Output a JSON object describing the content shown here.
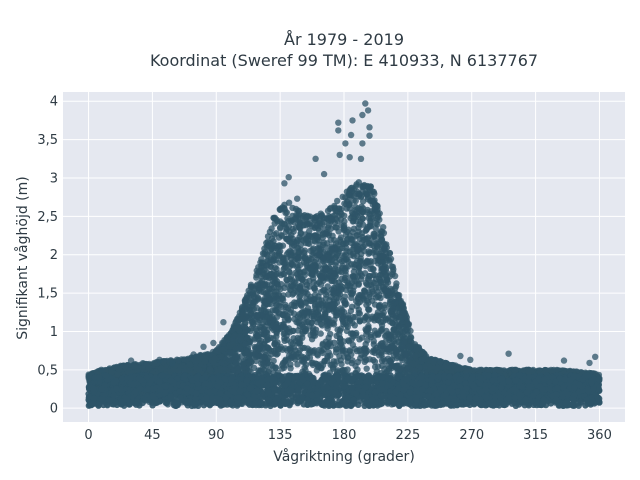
{
  "chart_data": {
    "type": "scatter",
    "title_line1": "År 1979 - 2019",
    "title_line2": "Koordinat (Sweref 99 TM): E 410933, N 6137767",
    "xlabel": "Vågriktning (grader)",
    "ylabel": "Signifikant våghöjd (m)",
    "xlim": [
      -18,
      378
    ],
    "ylim": [
      -0.18,
      4.12
    ],
    "xticks": [
      0,
      45,
      90,
      135,
      180,
      225,
      270,
      315,
      360
    ],
    "xtick_labels": [
      "0",
      "45",
      "90",
      "135",
      "180",
      "225",
      "270",
      "315",
      "360"
    ],
    "yticks": [
      0,
      0.5,
      1,
      1.5,
      2,
      2.5,
      3,
      3.5,
      4
    ],
    "ytick_labels": [
      "0",
      "0,5",
      "1",
      "1,5",
      "2",
      "2,5",
      "3",
      "3,5",
      "4"
    ],
    "grid": true,
    "colors": {
      "background": "#e5e8f0",
      "grid": "#ffffff",
      "points": "#2e5468"
    },
    "envelope": {
      "direction": [
        0,
        20,
        45,
        70,
        90,
        100,
        110,
        120,
        130,
        140,
        150,
        160,
        170,
        180,
        190,
        200,
        210,
        220,
        230,
        240,
        250,
        270,
        300,
        330,
        360
      ],
      "max_height": [
        0.45,
        0.55,
        0.6,
        0.65,
        0.75,
        1.0,
        1.4,
        1.9,
        2.5,
        2.7,
        2.55,
        2.5,
        2.6,
        2.8,
        2.95,
        2.9,
        2.2,
        1.45,
        0.85,
        0.65,
        0.6,
        0.5,
        0.5,
        0.5,
        0.45
      ]
    },
    "outliers": [
      {
        "x": 195,
        "y": 3.97
      },
      {
        "x": 197,
        "y": 3.88
      },
      {
        "x": 193,
        "y": 3.82
      },
      {
        "x": 176,
        "y": 3.72
      },
      {
        "x": 186,
        "y": 3.75
      },
      {
        "x": 198,
        "y": 3.66
      },
      {
        "x": 176,
        "y": 3.62
      },
      {
        "x": 185,
        "y": 3.56
      },
      {
        "x": 198,
        "y": 3.55
      },
      {
        "x": 181,
        "y": 3.45
      },
      {
        "x": 193,
        "y": 3.45
      },
      {
        "x": 177,
        "y": 3.3
      },
      {
        "x": 184,
        "y": 3.27
      },
      {
        "x": 192,
        "y": 3.25
      },
      {
        "x": 160,
        "y": 3.25
      },
      {
        "x": 141,
        "y": 3.01
      },
      {
        "x": 166,
        "y": 3.05
      },
      {
        "x": 138,
        "y": 2.93
      },
      {
        "x": 147,
        "y": 2.73
      },
      {
        "x": 95,
        "y": 1.12
      },
      {
        "x": 88,
        "y": 0.85
      },
      {
        "x": 81,
        "y": 0.8
      },
      {
        "x": 74,
        "y": 0.7
      },
      {
        "x": 262,
        "y": 0.68
      },
      {
        "x": 269,
        "y": 0.63
      },
      {
        "x": 296,
        "y": 0.71
      },
      {
        "x": 335,
        "y": 0.62
      },
      {
        "x": 357,
        "y": 0.67
      },
      {
        "x": 353,
        "y": 0.59
      },
      {
        "x": 30,
        "y": 0.62
      },
      {
        "x": 50,
        "y": 0.63
      },
      {
        "x": 59,
        "y": 0.58
      },
      {
        "x": 9,
        "y": 0.5
      }
    ]
  }
}
